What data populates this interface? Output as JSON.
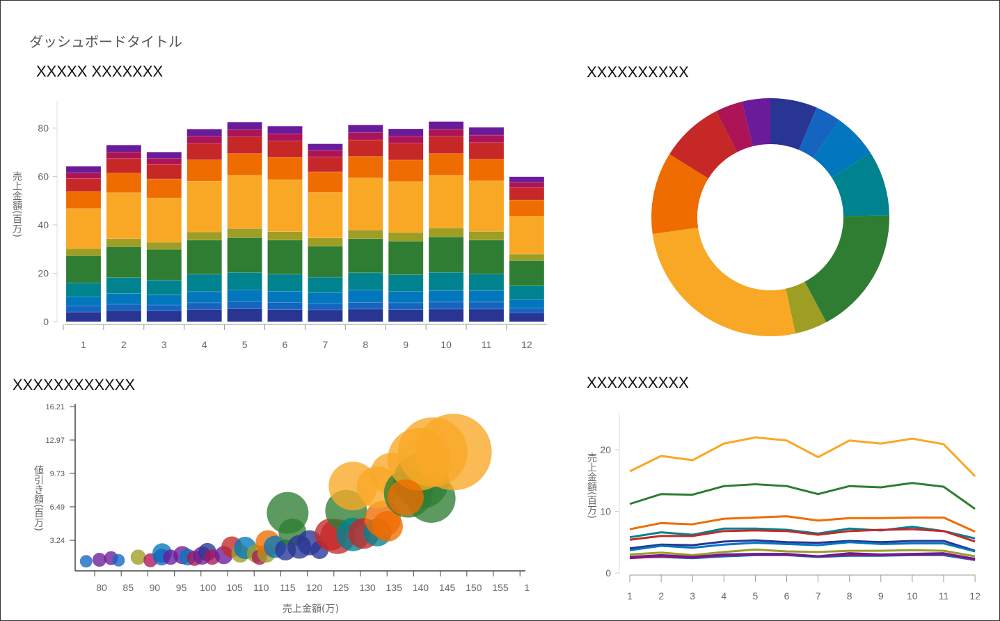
{
  "dashboard": {
    "title": "ダッシュボードタイトル"
  },
  "colors": [
    "#283593",
    "#1565C0",
    "#0277BD",
    "#00838F",
    "#2E7D32",
    "#9E9D24",
    "#F9A825",
    "#EF6C00",
    "#C62828",
    "#AD1457",
    "#6A1B9A"
  ],
  "chart_data": [
    {
      "id": "stacked",
      "type": "bar",
      "stacked": true,
      "title": "XXXXX XXXXXXX",
      "ylabel": "売上金額(百万)",
      "xlabel": "",
      "categories": [
        "1",
        "2",
        "3",
        "4",
        "5",
        "6",
        "7",
        "8",
        "9",
        "10",
        "11",
        "12"
      ],
      "ylim": [
        0,
        90
      ],
      "yticks": [
        "0",
        "20",
        "40",
        "60",
        "80"
      ],
      "series": [
        {
          "values": [
            4.0,
            4.6,
            4.5,
            5.1,
            5.3,
            5.0,
            4.9,
            5.2,
            5.0,
            5.2,
            5.2,
            3.6
          ]
        },
        {
          "values": [
            2.5,
            2.6,
            2.4,
            2.7,
            2.9,
            2.9,
            2.6,
            2.8,
            2.8,
            2.9,
            2.9,
            2.1
          ]
        },
        {
          "values": [
            3.7,
            4.4,
            4.1,
            4.6,
            4.9,
            4.7,
            4.5,
            5.0,
            4.7,
            4.8,
            4.8,
            3.5
          ]
        },
        {
          "values": [
            5.8,
            6.6,
            6.2,
            7.2,
            7.2,
            7.0,
            6.4,
            7.2,
            6.9,
            7.5,
            6.8,
            5.6
          ]
        },
        {
          "values": [
            11.2,
            12.8,
            12.7,
            14.1,
            14.4,
            14.1,
            12.8,
            14.1,
            13.9,
            14.6,
            14.0,
            10.4
          ]
        },
        {
          "values": [
            3.0,
            3.3,
            2.9,
            3.4,
            3.8,
            3.5,
            3.4,
            3.6,
            3.6,
            3.7,
            3.6,
            2.7
          ]
        },
        {
          "values": [
            16.5,
            19.0,
            18.3,
            21.0,
            22.0,
            21.5,
            18.8,
            21.5,
            21.0,
            21.8,
            20.9,
            15.7
          ]
        },
        {
          "values": [
            7.1,
            8.1,
            7.9,
            8.8,
            9.0,
            9.2,
            8.5,
            8.9,
            8.9,
            9.0,
            9.0,
            6.7
          ]
        },
        {
          "values": [
            5.4,
            6.0,
            6.0,
            6.8,
            6.9,
            6.8,
            6.2,
            6.8,
            7.0,
            7.1,
            6.8,
            5.1
          ]
        },
        {
          "values": [
            2.4,
            2.7,
            2.5,
            2.9,
            3.0,
            3.0,
            2.7,
            3.0,
            2.9,
            3.0,
            3.1,
            2.2
          ]
        },
        {
          "values": [
            2.6,
            2.9,
            2.6,
            3.0,
            3.1,
            3.1,
            2.7,
            3.2,
            3.0,
            3.1,
            3.2,
            2.3
          ]
        }
      ]
    },
    {
      "id": "donut",
      "type": "pie",
      "donut": true,
      "title": "XXXXXXXXXX",
      "values": [
        57.8,
        32.0,
        54.5,
        80.4,
        158.1,
        40.0,
        237.0,
        101.1,
        77.9,
        33.4,
        34.8
      ]
    },
    {
      "id": "bubble",
      "type": "scatter",
      "title": "XXXXXXXXXXXX",
      "xlabel": "売上金額(万)",
      "ylabel": "値引き額(百万)",
      "xticks": [
        "80",
        "85",
        "90",
        "95",
        "100",
        "105",
        "110",
        "115",
        "120",
        "125",
        "130",
        "135",
        "140",
        "145",
        "150",
        "155",
        "1"
      ],
      "yticks": [
        "3.24",
        "6.49",
        "9.73",
        "12.97",
        "16.21"
      ],
      "xlim": [
        78.7,
        160
      ],
      "ylim": [
        0,
        16.21
      ],
      "points": [
        {
          "x": 78.4,
          "y": 1.2,
          "size": 9,
          "c": 1
        },
        {
          "x": 80.9,
          "y": 1.35,
          "size": 10,
          "c": 10
        },
        {
          "x": 83.1,
          "y": 1.5,
          "size": 10,
          "c": 10
        },
        {
          "x": 84.5,
          "y": 1.3,
          "size": 9,
          "c": 1
        },
        {
          "x": 88.2,
          "y": 1.6,
          "size": 11,
          "c": 5
        },
        {
          "x": 90.5,
          "y": 1.3,
          "size": 10,
          "c": 9
        },
        {
          "x": 92.7,
          "y": 2.0,
          "size": 14,
          "c": 2
        },
        {
          "x": 92.6,
          "y": 1.6,
          "size": 12,
          "c": 1
        },
        {
          "x": 94.3,
          "y": 1.6,
          "size": 11,
          "c": 10
        },
        {
          "x": 96.5,
          "y": 1.8,
          "size": 13,
          "c": 10
        },
        {
          "x": 97.5,
          "y": 1.6,
          "size": 12,
          "c": 2
        },
        {
          "x": 98.8,
          "y": 1.5,
          "size": 11,
          "c": 9
        },
        {
          "x": 100.2,
          "y": 1.75,
          "size": 13,
          "c": 10
        },
        {
          "x": 101.2,
          "y": 2.1,
          "size": 13,
          "c": 0
        },
        {
          "x": 102.1,
          "y": 1.6,
          "size": 11,
          "c": 9
        },
        {
          "x": 104.3,
          "y": 1.8,
          "size": 13,
          "c": 10
        },
        {
          "x": 105.8,
          "y": 2.6,
          "size": 15,
          "c": 8
        },
        {
          "x": 107.4,
          "y": 1.95,
          "size": 13,
          "c": 5
        },
        {
          "x": 108.3,
          "y": 2.5,
          "size": 16,
          "c": 2
        },
        {
          "x": 110.3,
          "y": 1.95,
          "size": 13,
          "c": 5
        },
        {
          "x": 111.0,
          "y": 1.6,
          "size": 11,
          "c": 9
        },
        {
          "x": 112.3,
          "y": 1.95,
          "size": 13,
          "c": 5
        },
        {
          "x": 112.6,
          "y": 3.0,
          "size": 18,
          "c": 7
        },
        {
          "x": 113.9,
          "y": 2.6,
          "size": 16,
          "c": 2
        },
        {
          "x": 115.9,
          "y": 2.3,
          "size": 15,
          "c": 0
        },
        {
          "x": 116.3,
          "y": 5.9,
          "size": 30,
          "c": 4
        },
        {
          "x": 117.2,
          "y": 4.0,
          "size": 20,
          "c": 4
        },
        {
          "x": 118.5,
          "y": 2.6,
          "size": 17,
          "c": 0
        },
        {
          "x": 120.4,
          "y": 3.0,
          "size": 18,
          "c": 0
        },
        {
          "x": 122.3,
          "y": 2.3,
          "size": 13,
          "c": 0
        },
        {
          "x": 124.4,
          "y": 3.8,
          "size": 23,
          "c": 8
        },
        {
          "x": 125.7,
          "y": 3.6,
          "size": 25,
          "c": 8
        },
        {
          "x": 127.3,
          "y": 6.1,
          "size": 30,
          "c": 4
        },
        {
          "x": 128.6,
          "y": 3.8,
          "size": 24,
          "c": 3
        },
        {
          "x": 128.6,
          "y": 8.5,
          "size": 35,
          "c": 6
        },
        {
          "x": 130.6,
          "y": 3.9,
          "size": 22,
          "c": 8
        },
        {
          "x": 133.2,
          "y": 4.0,
          "size": 20,
          "c": 3
        },
        {
          "x": 134.2,
          "y": 5.3,
          "size": 26,
          "c": 7
        },
        {
          "x": 135.1,
          "y": 4.6,
          "size": 22,
          "c": 7
        },
        {
          "x": 133.2,
          "y": 8.4,
          "size": 30,
          "c": 6
        },
        {
          "x": 135.8,
          "y": 9.7,
          "size": 30,
          "c": 6
        },
        {
          "x": 139.0,
          "y": 7.8,
          "size": 35,
          "c": 4
        },
        {
          "x": 141.4,
          "y": 9.0,
          "size": 40,
          "c": 4
        },
        {
          "x": 143.3,
          "y": 7.3,
          "size": 35,
          "c": 4
        },
        {
          "x": 143.6,
          "y": 11.8,
          "size": 50,
          "c": 6
        },
        {
          "x": 147.5,
          "y": 11.8,
          "size": 55,
          "c": 6
        },
        {
          "x": 141.0,
          "y": 11.1,
          "size": 45,
          "c": 6
        },
        {
          "x": 138.5,
          "y": 7.4,
          "size": 26,
          "c": 7
        }
      ]
    },
    {
      "id": "lines",
      "type": "line",
      "title": "XXXXXXXXXX",
      "ylabel": "売上金額(百万)",
      "xlabel": "",
      "categories": [
        "1",
        "2",
        "3",
        "4",
        "5",
        "6",
        "7",
        "8",
        "9",
        "10",
        "11",
        "12"
      ],
      "ylim": [
        0,
        26
      ],
      "yticks": [
        "0",
        "10",
        "20"
      ],
      "uses_series_of": "stacked"
    }
  ]
}
